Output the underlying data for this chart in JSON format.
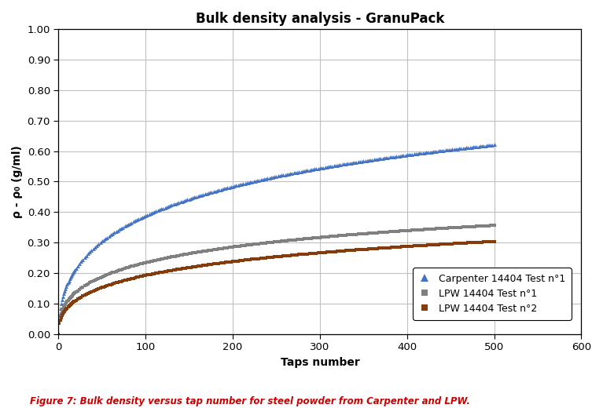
{
  "title": "Bulk density analysis - GranuPack",
  "xlabel": "Taps number",
  "ylabel": "ρ - ρ₀ (g/ml)",
  "xlim": [
    0,
    600
  ],
  "ylim": [
    0.0,
    1.0
  ],
  "xticks": [
    0,
    100,
    200,
    300,
    400,
    500,
    600
  ],
  "yticks": [
    0.0,
    0.1,
    0.2,
    0.3,
    0.4,
    0.5,
    0.6,
    0.7,
    0.8,
    0.9,
    1.0
  ],
  "caption": "Figure 7: Bulk density versus tap number for steel powder from Carpenter and LPW.",
  "caption_color": "#cc0000",
  "series": [
    {
      "label": "Carpenter 14404 Test n°1",
      "color": "#4472C4",
      "marker": "^",
      "markersize": 3.5,
      "A": 0.91,
      "k": 0.07,
      "p": 0.45
    },
    {
      "label": "LPW 14404 Test n°1",
      "color": "#808080",
      "marker": "s",
      "markersize": 3,
      "A": 0.505,
      "k": 0.09,
      "p": 0.42
    },
    {
      "label": "LPW 14404 Test n°2",
      "color": "#843C0C",
      "marker": "s",
      "markersize": 3,
      "A": 0.475,
      "k": 0.075,
      "p": 0.42
    }
  ],
  "background_color": "#ffffff",
  "grid_color": "#c0c0c0"
}
